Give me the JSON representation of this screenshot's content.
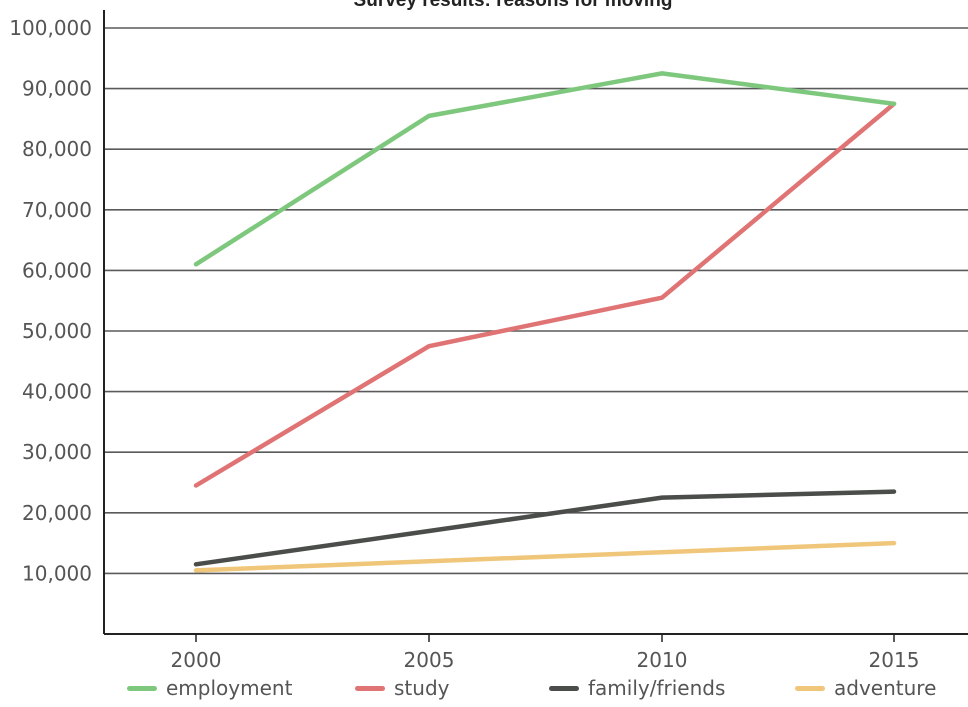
{
  "chart_data": {
    "type": "line",
    "title": "Survey results: reasons for moving",
    "xlabel": "",
    "ylabel": "",
    "x": [
      2000,
      2005,
      2010,
      2015
    ],
    "x_tick_labels": [
      "2000",
      "2005",
      "2010",
      "2015"
    ],
    "y_tick_labels": [
      "100,000",
      "90,000",
      "80,000",
      "70,000",
      "60,000",
      "50,000",
      "40,000",
      "30,000",
      "20,000",
      "10,000"
    ],
    "ylim": [
      0,
      100000
    ],
    "grid": true,
    "legend_position": "bottom",
    "series": [
      {
        "name": "employment",
        "color": "#7ec87e",
        "values": [
          61000,
          85500,
          92500,
          87500
        ]
      },
      {
        "name": "study",
        "color": "#e07373",
        "values": [
          24500,
          47500,
          55500,
          87500
        ]
      },
      {
        "name": "family/friends",
        "color": "#4a4d4a",
        "values": [
          11500,
          17000,
          22500,
          23500
        ]
      },
      {
        "name": "adventure",
        "color": "#f0c67a",
        "values": [
          10500,
          12000,
          13500,
          15000
        ]
      }
    ]
  }
}
